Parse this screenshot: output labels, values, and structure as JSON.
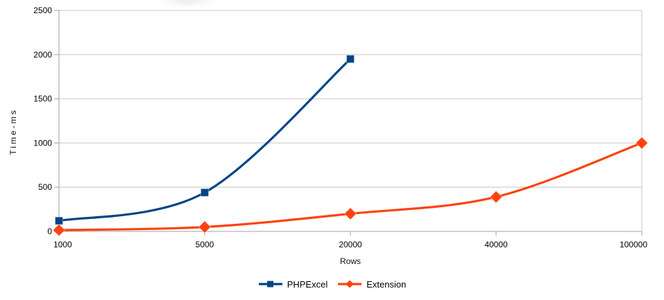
{
  "chart_data": {
    "type": "line",
    "title": "",
    "categories": [
      "1000",
      "5000",
      "20000",
      "40000",
      "100000"
    ],
    "series": [
      {
        "name": "PHPExcel",
        "color": "#004586",
        "marker": "square",
        "values": [
          120,
          440,
          1950,
          null,
          null
        ]
      },
      {
        "name": "Extension",
        "color": "#ff420e",
        "marker": "diamond",
        "values": [
          15,
          50,
          200,
          390,
          1000
        ]
      }
    ],
    "xlabel": "Rows",
    "ylabel": "Time-ms",
    "ylim": [
      0,
      2500
    ],
    "yticks": [
      0,
      500,
      1000,
      1500,
      2000,
      2500
    ],
    "grid": "horizontal gridlines on, vertical off",
    "legend_position": "bottom center",
    "line_style": "smooth"
  },
  "colors": {
    "background": "#ffffff",
    "gridline": "#d3d3d3",
    "axis": "#b3b3b3",
    "text": "#000000"
  }
}
